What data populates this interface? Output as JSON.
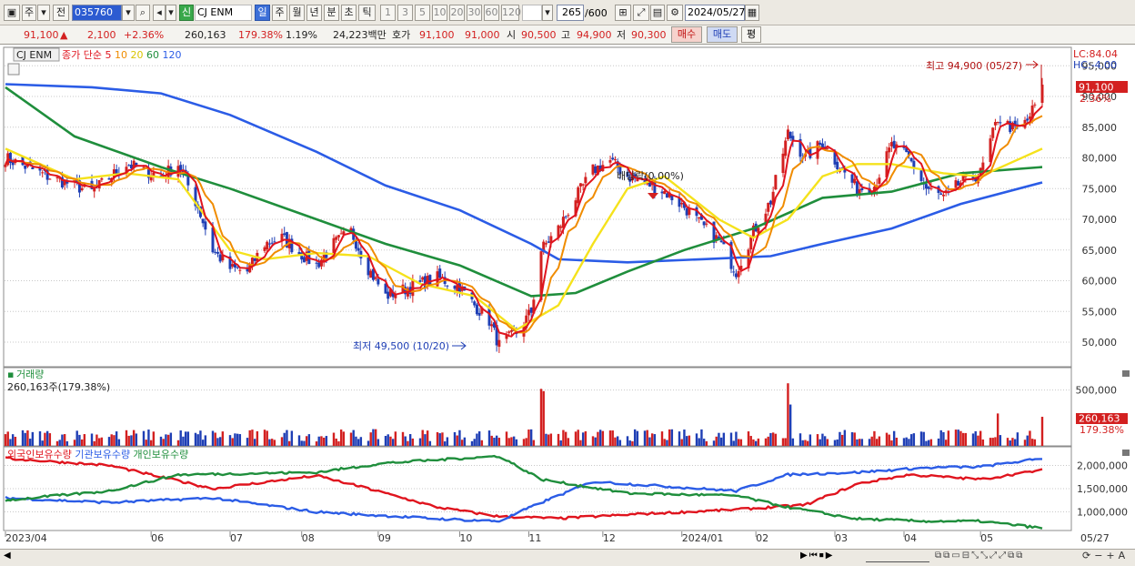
{
  "toolbar": {
    "period_tabs": [
      "주",
      "전"
    ],
    "code": "035760",
    "stock_badge": "신",
    "stock_name": "CJ ENM",
    "timeframes": [
      "일",
      "주",
      "월",
      "년",
      "분",
      "초",
      "틱"
    ],
    "intervals": [
      "1",
      "3",
      "5",
      "10",
      "20",
      "30",
      "60",
      "120"
    ],
    "count": "265",
    "count_total": "/600",
    "date": "2024/05/27"
  },
  "quote": {
    "price": "91,100",
    "arrow": "▲",
    "change": "2,100",
    "change_pct": "+2.36%",
    "volume": "260,163",
    "volume_ratio": "179.38%",
    "turnover": "1.19%",
    "amount": "24,223백만",
    "ask_label": "호가",
    "ask1": "91,100",
    "ask2": "91,000",
    "open_label": "시",
    "open": "90,500",
    "high_label": "고",
    "high": "94,900",
    "low_label": "저",
    "low": "90,300",
    "buy_label": "매수",
    "sell_label": "매도",
    "eval_label": "평"
  },
  "colors": {
    "candle_up": "#d32020",
    "candle_down": "#1f3fb5",
    "ma5": "#e0141e",
    "ma10": "#f08c00",
    "ma20": "#f5e21c",
    "ma60": "#1f8e3c",
    "ma120": "#2b5ce6"
  },
  "price_panel": {
    "title_name": "CJ ENM",
    "legend": [
      {
        "label": "종가 단순 5",
        "color": "#e0141e"
      },
      {
        "label": "10",
        "color": "#f08c00"
      },
      {
        "label": "20",
        "color": "#d9c400"
      },
      {
        "label": "60",
        "color": "#1f8e3c"
      },
      {
        "label": "120",
        "color": "#2b5ce6"
      }
    ],
    "lc": "LC:84.04",
    "hc": "HC:-4.00",
    "current_price": "91,100",
    "current_pct": "2.36%",
    "high_note": "최고 94,900 (05/27)",
    "low_note": "최저 49,500 (10/20)",
    "dividend_note": "배당락(0.00%)"
  },
  "volume_panel": {
    "title": "거래량",
    "value": "260,163주(179.38%)",
    "current": "260,163",
    "current_pct": "179.38%"
  },
  "holding_panel": {
    "legend": [
      {
        "label": "외국인보유수량",
        "color": "#e0141e"
      },
      {
        "label": "기관보유수량",
        "color": "#2b5ce6"
      },
      {
        "label": "개인보유수량",
        "color": "#1f8e3c"
      }
    ]
  },
  "chart_data": [
    {
      "type": "candlestick",
      "title": "CJ ENM",
      "ylim": [
        46000,
        98000
      ],
      "y_ticks": [
        "95,000",
        "90,000",
        "85,000",
        "80,000",
        "75,000",
        "70,000",
        "65,000",
        "60,000",
        "55,000",
        "50,000"
      ],
      "x_ticks": [
        "2023/04",
        "06",
        "07",
        "08",
        "09",
        "10",
        "11",
        "12",
        "2024/01",
        "02",
        "03",
        "04",
        "05",
        "05/27"
      ],
      "close_path": [
        [
          "2023/04/03",
          80000
        ],
        [
          "2023/04/20",
          77000
        ],
        [
          "2023/05/08",
          74500
        ],
        [
          "2023/05/22",
          79000
        ],
        [
          "2023/06/05",
          77000
        ],
        [
          "2023/06/12",
          79000
        ],
        [
          "2023/06/20",
          72000
        ],
        [
          "2023/06/26",
          65000
        ],
        [
          "2023/07/03",
          62000
        ],
        [
          "2023/07/10",
          61500
        ],
        [
          "2023/07/17",
          66000
        ],
        [
          "2023/07/24",
          67000
        ],
        [
          "2023/07/31",
          64500
        ],
        [
          "2023/08/07",
          62500
        ],
        [
          "2023/08/14",
          66000
        ],
        [
          "2023/08/21",
          68000
        ],
        [
          "2023/08/28",
          62000
        ],
        [
          "2023/09/04",
          57500
        ],
        [
          "2023/09/11",
          58500
        ],
        [
          "2023/09/18",
          59500
        ],
        [
          "2023/09/25",
          60500
        ],
        [
          "2023/10/04",
          59000
        ],
        [
          "2023/10/10",
          56000
        ],
        [
          "2023/10/16",
          53500
        ],
        [
          "2023/10/20",
          49500
        ],
        [
          "2023/10/27",
          51500
        ],
        [
          "2023/11/02",
          55000
        ],
        [
          "2023/11/06",
          65000
        ],
        [
          "2023/11/13",
          68500
        ],
        [
          "2023/11/20",
          73500
        ],
        [
          "2023/11/27",
          78000
        ],
        [
          "2023/12/04",
          79500
        ],
        [
          "2023/12/11",
          77000
        ],
        [
          "2023/12/18",
          76000
        ],
        [
          "2023/12/26",
          74500
        ],
        [
          "2024/01/03",
          72000
        ],
        [
          "2024/01/10",
          69000
        ],
        [
          "2024/01/17",
          66500
        ],
        [
          "2024/01/24",
          61500
        ],
        [
          "2024/01/31",
          68000
        ],
        [
          "2024/02/07",
          73000
        ],
        [
          "2024/02/14",
          84000
        ],
        [
          "2024/02/21",
          80000
        ],
        [
          "2024/02/28",
          82500
        ],
        [
          "2024/03/06",
          78500
        ],
        [
          "2024/03/13",
          75000
        ],
        [
          "2024/03/20",
          75500
        ],
        [
          "2024/03/27",
          82000
        ],
        [
          "2024/04/03",
          80000
        ],
        [
          "2024/04/10",
          75000
        ],
        [
          "2024/04/17",
          73500
        ],
        [
          "2024/04/24",
          76000
        ],
        [
          "2024/05/02",
          77500
        ],
        [
          "2024/05/09",
          86500
        ],
        [
          "2024/05/16",
          84500
        ],
        [
          "2024/05/21",
          86000
        ],
        [
          "2024/05/27",
          91100
        ]
      ],
      "ma20_path": [
        [
          "2023/04/03",
          81500
        ],
        [
          "2023/05/01",
          76500
        ],
        [
          "2023/05/22",
          77500
        ],
        [
          "2023/06/12",
          76500
        ],
        [
          "2023/07/03",
          65000
        ],
        [
          "2023/07/17",
          63500
        ],
        [
          "2023/08/07",
          64500
        ],
        [
          "2023/08/28",
          64000
        ],
        [
          "2023/09/18",
          59500
        ],
        [
          "2023/10/10",
          57500
        ],
        [
          "2023/10/27",
          52000
        ],
        [
          "2023/11/13",
          56000
        ],
        [
          "2023/11/27",
          66000
        ],
        [
          "2023/12/11",
          75000
        ],
        [
          "2023/12/26",
          77000
        ],
        [
          "2024/01/17",
          70000
        ],
        [
          "2024/01/31",
          67000
        ],
        [
          "2024/02/14",
          70000
        ],
        [
          "2024/02/28",
          77000
        ],
        [
          "2024/03/13",
          79000
        ],
        [
          "2024/03/27",
          79000
        ],
        [
          "2024/04/17",
          77500
        ],
        [
          "2024/05/02",
          77000
        ],
        [
          "2024/05/27",
          81500
        ]
      ],
      "ma60_path": [
        [
          "2023/04/03",
          91500
        ],
        [
          "2023/05/01",
          83500
        ],
        [
          "2023/06/05",
          78500
        ],
        [
          "2023/07/03",
          75000
        ],
        [
          "2023/08/07",
          70000
        ],
        [
          "2023/09/04",
          66000
        ],
        [
          "2023/10/04",
          62500
        ],
        [
          "2023/11/02",
          57500
        ],
        [
          "2023/11/20",
          58000
        ],
        [
          "2023/12/11",
          61500
        ],
        [
          "2024/01/03",
          65000
        ],
        [
          "2024/01/31",
          68500
        ],
        [
          "2024/02/28",
          73500
        ],
        [
          "2024/03/27",
          74500
        ],
        [
          "2024/04/24",
          77500
        ],
        [
          "2024/05/27",
          78500
        ]
      ],
      "ma120_path": [
        [
          "2023/04/03",
          92000
        ],
        [
          "2023/05/08",
          91500
        ],
        [
          "2023/06/05",
          90500
        ],
        [
          "2023/07/03",
          87000
        ],
        [
          "2023/08/07",
          81000
        ],
        [
          "2023/09/04",
          75500
        ],
        [
          "2023/10/04",
          71500
        ],
        [
          "2023/11/02",
          66000
        ],
        [
          "2023/11/13",
          63500
        ],
        [
          "2023/12/11",
          63000
        ],
        [
          "2024/01/10",
          63500
        ],
        [
          "2024/02/07",
          64000
        ],
        [
          "2024/02/28",
          66000
        ],
        [
          "2024/03/27",
          68500
        ],
        [
          "2024/04/24",
          72500
        ],
        [
          "2024/05/27",
          76000
        ]
      ]
    },
    {
      "type": "bar",
      "title": "거래량",
      "ylim": [
        0,
        700000
      ],
      "y_ticks": [
        "500,000"
      ],
      "spikes": [
        [
          "2023/11/06",
          510000
        ],
        [
          "2023/11/07",
          490000
        ],
        [
          "2024/02/14",
          560000
        ],
        [
          "2024/02/15",
          370000
        ],
        [
          "2024/05/09",
          290000
        ],
        [
          "2024/05/27",
          260163
        ]
      ]
    },
    {
      "type": "line",
      "title": "보유수량",
      "ylim": [
        600000,
        2400000
      ],
      "y_ticks": [
        "2,000,000",
        "1,500,000",
        "1,000,000"
      ],
      "series": [
        {
          "name": "외국인보유수량",
          "path": [
            [
              "2023/04/03",
              2150000
            ],
            [
              "2023/05/15",
              2000000
            ],
            [
              "2023/06/26",
              1500000
            ],
            [
              "2023/08/07",
              1780000
            ],
            [
              "2023/08/28",
              1500000
            ],
            [
              "2023/09/25",
              1100000
            ],
            [
              "2023/10/20",
              900000
            ],
            [
              "2023/11/13",
              860000
            ],
            [
              "2023/12/18",
              960000
            ],
            [
              "2024/01/24",
              1050000
            ],
            [
              "2024/02/21",
              1150000
            ],
            [
              "2024/03/13",
              1600000
            ],
            [
              "2024/04/03",
              1800000
            ],
            [
              "2024/05/02",
              1700000
            ],
            [
              "2024/05/27",
              1900000
            ]
          ]
        },
        {
          "name": "기관보유수량",
          "path": [
            [
              "2023/04/03",
              1300000
            ],
            [
              "2023/05/15",
              1200000
            ],
            [
              "2023/06/26",
              1300000
            ],
            [
              "2023/08/07",
              1000000
            ],
            [
              "2023/09/25",
              850000
            ],
            [
              "2023/10/20",
              800000
            ],
            [
              "2023/11/06",
              1200000
            ],
            [
              "2023/11/27",
              1650000
            ],
            [
              "2023/12/26",
              1550000
            ],
            [
              "2024/01/24",
              1450000
            ],
            [
              "2024/02/14",
              1800000
            ],
            [
              "2024/03/13",
              1850000
            ],
            [
              "2024/04/10",
              1950000
            ],
            [
              "2024/05/02",
              1970000
            ],
            [
              "2024/05/27",
              2150000
            ]
          ]
        },
        {
          "name": "개인보유수량",
          "path": [
            [
              "2023/04/03",
              1250000
            ],
            [
              "2023/05/15",
              1450000
            ],
            [
              "2023/06/12",
              1800000
            ],
            [
              "2023/08/07",
              1850000
            ],
            [
              "2023/09/04",
              2050000
            ],
            [
              "2023/10/20",
              2200000
            ],
            [
              "2023/11/06",
              1700000
            ],
            [
              "2023/12/11",
              1400000
            ],
            [
              "2024/01/24",
              1350000
            ],
            [
              "2024/02/14",
              1100000
            ],
            [
              "2024/03/13",
              850000
            ],
            [
              "2024/04/10",
              800000
            ],
            [
              "2024/05/02",
              800000
            ],
            [
              "2024/05/27",
              650000
            ]
          ]
        }
      ]
    }
  ]
}
